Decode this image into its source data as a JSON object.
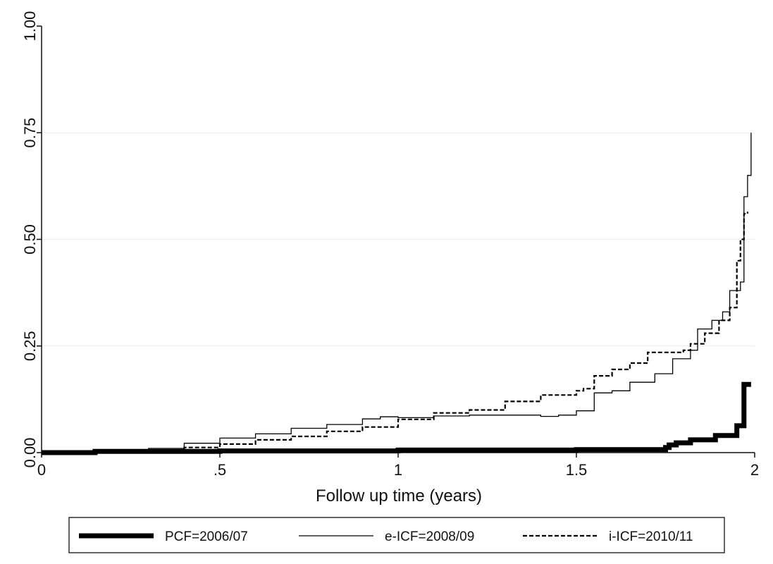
{
  "chart_data": {
    "type": "line",
    "title": "",
    "xlabel": "Follow up time (years)",
    "ylabel": "",
    "xlim": [
      0,
      2
    ],
    "ylim": [
      0,
      1
    ],
    "x_ticks": [
      {
        "value": 0,
        "label": "0"
      },
      {
        "value": 0.5,
        "label": ".5"
      },
      {
        "value": 1,
        "label": "1"
      },
      {
        "value": 1.5,
        "label": "1.5"
      },
      {
        "value": 2,
        "label": "2"
      }
    ],
    "y_ticks": [
      {
        "value": 0,
        "label": "0.00"
      },
      {
        "value": 0.25,
        "label": "0.25"
      },
      {
        "value": 0.5,
        "label": "0.50"
      },
      {
        "value": 0.75,
        "label": "0.75"
      },
      {
        "value": 1,
        "label": "1.00"
      }
    ],
    "grid": "horizontal",
    "legend_position": "bottom",
    "series": [
      {
        "name": "PCF=2006/07",
        "style": "thick-solid",
        "points": [
          [
            0,
            0
          ],
          [
            0.15,
            0.003
          ],
          [
            0.5,
            0.004
          ],
          [
            1.0,
            0.006
          ],
          [
            1.5,
            0.007
          ],
          [
            1.74,
            0.007
          ],
          [
            1.75,
            0.012
          ],
          [
            1.76,
            0.018
          ],
          [
            1.78,
            0.023
          ],
          [
            1.82,
            0.03
          ],
          [
            1.89,
            0.04
          ],
          [
            1.95,
            0.063
          ],
          [
            1.97,
            0.16
          ],
          [
            1.99,
            0.16
          ]
        ]
      },
      {
        "name": "e-ICF=2008/09",
        "style": "thin-solid",
        "points": [
          [
            0,
            0
          ],
          [
            0.15,
            0.004
          ],
          [
            0.3,
            0.01
          ],
          [
            0.4,
            0.022
          ],
          [
            0.5,
            0.034
          ],
          [
            0.6,
            0.044
          ],
          [
            0.7,
            0.057
          ],
          [
            0.8,
            0.066
          ],
          [
            0.9,
            0.079
          ],
          [
            0.95,
            0.084
          ],
          [
            1.0,
            0.082
          ],
          [
            1.1,
            0.086
          ],
          [
            1.2,
            0.088
          ],
          [
            1.3,
            0.088
          ],
          [
            1.4,
            0.085
          ],
          [
            1.45,
            0.088
          ],
          [
            1.5,
            0.098
          ],
          [
            1.55,
            0.14
          ],
          [
            1.6,
            0.145
          ],
          [
            1.65,
            0.165
          ],
          [
            1.72,
            0.185
          ],
          [
            1.77,
            0.22
          ],
          [
            1.82,
            0.24
          ],
          [
            1.84,
            0.29
          ],
          [
            1.88,
            0.31
          ],
          [
            1.91,
            0.33
          ],
          [
            1.93,
            0.38
          ],
          [
            1.96,
            0.4
          ],
          [
            1.97,
            0.6
          ],
          [
            1.98,
            0.65
          ],
          [
            1.99,
            0.75
          ]
        ]
      },
      {
        "name": "i-ICF=2010/11",
        "style": "dashed",
        "points": [
          [
            0,
            0
          ],
          [
            0.2,
            0.003
          ],
          [
            0.3,
            0.006
          ],
          [
            0.4,
            0.012
          ],
          [
            0.5,
            0.02
          ],
          [
            0.6,
            0.03
          ],
          [
            0.7,
            0.038
          ],
          [
            0.8,
            0.05
          ],
          [
            0.9,
            0.06
          ],
          [
            1.0,
            0.078
          ],
          [
            1.1,
            0.093
          ],
          [
            1.2,
            0.1
          ],
          [
            1.3,
            0.12
          ],
          [
            1.4,
            0.135
          ],
          [
            1.5,
            0.145
          ],
          [
            1.52,
            0.15
          ],
          [
            1.55,
            0.18
          ],
          [
            1.6,
            0.195
          ],
          [
            1.65,
            0.21
          ],
          [
            1.7,
            0.235
          ],
          [
            1.8,
            0.24
          ],
          [
            1.82,
            0.255
          ],
          [
            1.86,
            0.28
          ],
          [
            1.9,
            0.31
          ],
          [
            1.93,
            0.34
          ],
          [
            1.95,
            0.45
          ],
          [
            1.96,
            0.5
          ],
          [
            1.97,
            0.56
          ],
          [
            1.98,
            0.565
          ]
        ]
      }
    ]
  }
}
